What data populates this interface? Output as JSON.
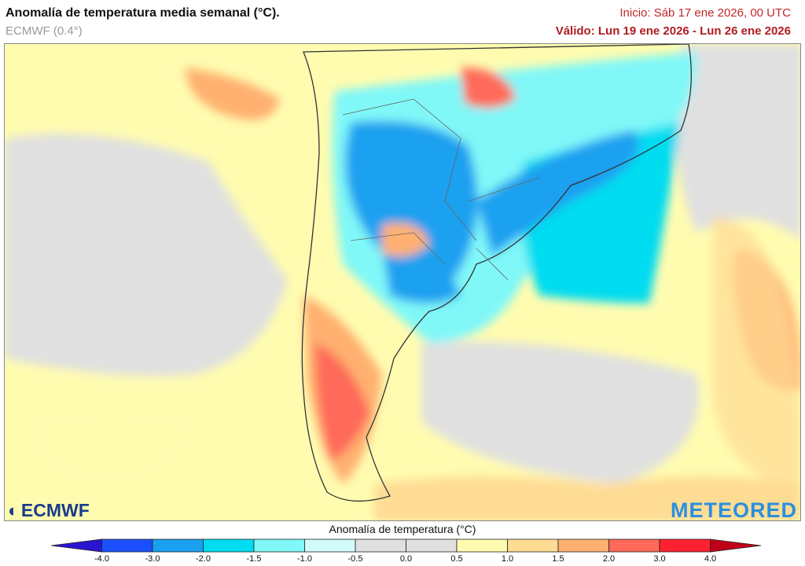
{
  "header": {
    "title": "Anomalía de temperatura media semanal (°C).",
    "model": "ECMWF (0.4°)",
    "init": "Inicio: Sáb 17 ene 2026, 00 UTC",
    "valid": "Válido: Lun 19 ene 2026 - Lun 26 ene 2026"
  },
  "map": {
    "region": "Southern South America",
    "variable": "weekly mean temperature anomaly"
  },
  "logos": {
    "left": "ECMWF",
    "right": "METEORED"
  },
  "legend": {
    "title": "Anomalía de temperatura (°C)",
    "ticks": [
      "-4.0",
      "-3.0",
      "-2.0",
      "-1.5",
      "-1.0",
      "-0.5",
      "0.0",
      "0.5",
      "1.0",
      "1.5",
      "2.0",
      "3.0",
      "4.0"
    ],
    "colors": [
      "#2a14d4",
      "#1a50ff",
      "#1aa0f0",
      "#00dcf0",
      "#80f8f8",
      "#d2fcfc",
      "#e0e0e0",
      "#e0e0e0",
      "#fffcb0",
      "#ffdc94",
      "#ffb070",
      "#ff6a5a",
      "#ff2030",
      "#c00018"
    ]
  }
}
